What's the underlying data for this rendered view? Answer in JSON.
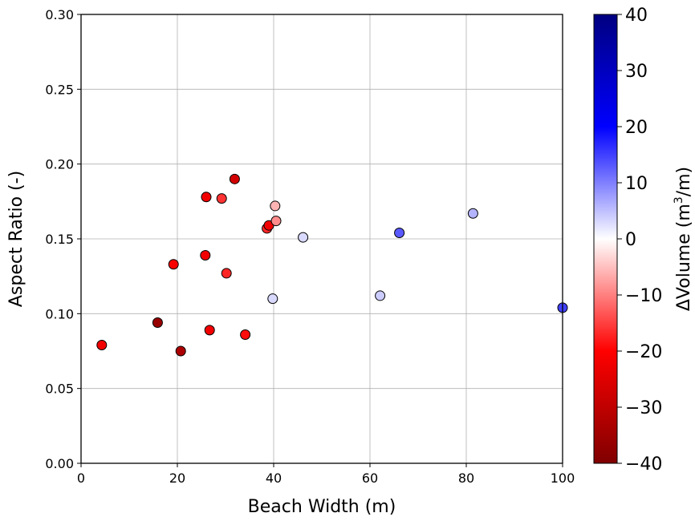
{
  "chart_data": {
    "type": "scatter",
    "xlabel": "Beach Width (m)",
    "ylabel": "Aspect Ratio (-)",
    "xlim": [
      0,
      100
    ],
    "ylim": [
      0,
      0.3
    ],
    "x_ticks": [
      "0",
      "20",
      "40",
      "60",
      "80",
      "100"
    ],
    "y_ticks": [
      "0.00",
      "0.05",
      "0.10",
      "0.15",
      "0.20",
      "0.25",
      "0.30"
    ],
    "grid": true,
    "colorbar": {
      "label_prefix": "ΔVolume (m",
      "label_superscript": "3",
      "label_suffix": "/m)",
      "range": [
        -40,
        40
      ],
      "ticks": [
        "40",
        "30",
        "20",
        "10",
        "0",
        "−10",
        "−20",
        "−30",
        "−40"
      ],
      "colormap": "seismic",
      "colors": {
        "low": "#800000",
        "mid_low": "#ff0000",
        "center": "#ffffff",
        "mid_high": "#0000ff",
        "high": "#000080"
      }
    },
    "points": [
      {
        "x": 4.3,
        "y": 0.079,
        "c": -22
      },
      {
        "x": 15.9,
        "y": 0.094,
        "c": -36
      },
      {
        "x": 19.2,
        "y": 0.133,
        "c": -21
      },
      {
        "x": 20.7,
        "y": 0.075,
        "c": -33
      },
      {
        "x": 25.8,
        "y": 0.139,
        "c": -22
      },
      {
        "x": 26.0,
        "y": 0.178,
        "c": -22
      },
      {
        "x": 26.7,
        "y": 0.089,
        "c": -22
      },
      {
        "x": 29.2,
        "y": 0.177,
        "c": -16
      },
      {
        "x": 30.2,
        "y": 0.127,
        "c": -17
      },
      {
        "x": 31.9,
        "y": 0.19,
        "c": -27
      },
      {
        "x": 34.1,
        "y": 0.086,
        "c": -19
      },
      {
        "x": 38.6,
        "y": 0.157,
        "c": -17
      },
      {
        "x": 39.0,
        "y": 0.159,
        "c": -22
      },
      {
        "x": 39.8,
        "y": 0.11,
        "c": 3
      },
      {
        "x": 40.3,
        "y": 0.172,
        "c": -6
      },
      {
        "x": 40.5,
        "y": 0.162,
        "c": -9
      },
      {
        "x": 46.1,
        "y": 0.151,
        "c": 3
      },
      {
        "x": 62.1,
        "y": 0.112,
        "c": 4
      },
      {
        "x": 66.1,
        "y": 0.154,
        "c": 13
      },
      {
        "x": 81.4,
        "y": 0.167,
        "c": 6
      },
      {
        "x": 100.0,
        "y": 0.104,
        "c": 15
      }
    ]
  }
}
